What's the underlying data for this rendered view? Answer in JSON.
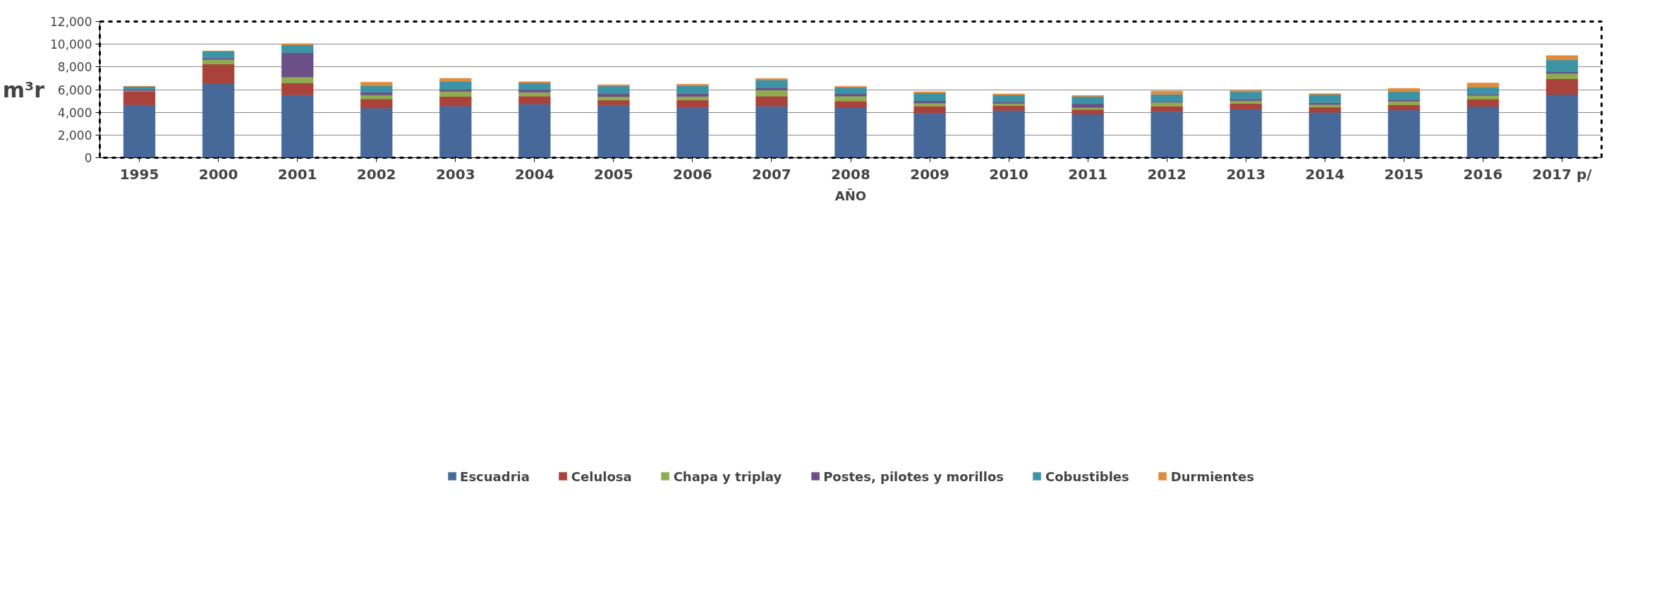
{
  "chart_data": {
    "type": "bar",
    "stacked": true,
    "xlabel": "AÑO",
    "ylabel": "m³r",
    "categories": [
      "1995",
      "2000",
      "2001",
      "2002",
      "2003",
      "2004",
      "2005",
      "2006",
      "2007",
      "2008",
      "2009",
      "2010",
      "2011",
      "2012",
      "2013",
      "2014",
      "2015",
      "2016",
      "2017 p/"
    ],
    "series": [
      {
        "name": "Escuadria",
        "color": "#46699a",
        "values": [
          4660,
          6520,
          5530,
          4370,
          4550,
          4730,
          4640,
          4430,
          4540,
          4450,
          3930,
          4160,
          3830,
          4060,
          4280,
          4000,
          4190,
          4510,
          5570
        ]
      },
      {
        "name": "Celulosa",
        "color": "#a9423b",
        "values": [
          1180,
          1720,
          1060,
          800,
          850,
          700,
          430,
          650,
          880,
          540,
          610,
          420,
          410,
          480,
          490,
          440,
          480,
          650,
          1380
        ]
      },
      {
        "name": "Chapa y triplay",
        "color": "#8fad4f",
        "values": [
          60,
          410,
          510,
          350,
          440,
          330,
          310,
          310,
          540,
          430,
          270,
          190,
          180,
          330,
          250,
          240,
          300,
          330,
          470
        ]
      },
      {
        "name": "Postes, pilotes y morillos",
        "color": "#6c4f86",
        "values": [
          130,
          140,
          2140,
          250,
          160,
          250,
          250,
          250,
          210,
          200,
          190,
          160,
          330,
          60,
          150,
          150,
          140,
          100,
          140
        ]
      },
      {
        "name": "Cobustibles",
        "color": "#3d93a6",
        "values": [
          240,
          600,
          710,
          590,
          730,
          580,
          690,
          710,
          690,
          570,
          690,
          590,
          640,
          650,
          640,
          730,
          710,
          620,
          1060
        ]
      },
      {
        "name": "Durmientes",
        "color": "#e08a3c",
        "values": [
          30,
          20,
          100,
          290,
          260,
          110,
          110,
          130,
          120,
          110,
          120,
          100,
          90,
          300,
          120,
          90,
          290,
          380,
          380
        ]
      }
    ],
    "ylim": [
      0,
      12000
    ],
    "yticks": [
      0,
      {
        "value": 2000,
        "label": "2,000"
      },
      {
        "value": 4000,
        "label": "4,000"
      },
      {
        "value": 6000,
        "label": "6,000"
      },
      {
        "value": 8000,
        "label": "8,000"
      },
      {
        "value": 10000,
        "label": "10,000"
      },
      {
        "value": 12000,
        "label": "12,000"
      }
    ],
    "grid": "y",
    "legend": "bottom"
  }
}
